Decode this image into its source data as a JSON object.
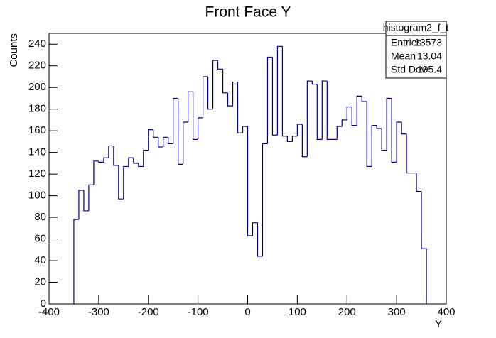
{
  "chart_data": {
    "type": "histogram",
    "title": "Front Face Y",
    "x_label": "Y",
    "y_label": "Counts",
    "bins": [
      -350,
      -340,
      -330,
      -320,
      -310,
      -300,
      -290,
      -280,
      -270,
      -260,
      -250,
      -240,
      -230,
      -220,
      -210,
      -200,
      -190,
      -180,
      -170,
      -160,
      -150,
      -140,
      -130,
      -120,
      -110,
      -100,
      -90,
      -80,
      -70,
      -60,
      -50,
      -40,
      -30,
      -20,
      -10,
      0,
      10,
      20,
      30,
      40,
      50,
      60,
      70,
      80,
      90,
      100,
      110,
      120,
      130,
      140,
      150,
      160,
      170,
      180,
      190,
      200,
      210,
      220,
      230,
      240,
      250,
      260,
      270,
      280,
      290,
      300,
      310,
      320,
      330,
      340,
      350,
      360
    ],
    "values": [
      78,
      105,
      86,
      110,
      132,
      131,
      135,
      146,
      128,
      97,
      127,
      135,
      130,
      127,
      142,
      161,
      154,
      145,
      154,
      148,
      190,
      129,
      168,
      196,
      152,
      172,
      210,
      180,
      225,
      217,
      195,
      183,
      205,
      158,
      164,
      63,
      75,
      44,
      148,
      228,
      156,
      238,
      155,
      150,
      155,
      166,
      136,
      206,
      203,
      152,
      206,
      152,
      152,
      164,
      170,
      182,
      165,
      192,
      187,
      127,
      165,
      162,
      142,
      190,
      131,
      168,
      157,
      121,
      121,
      104,
      51
    ],
    "color": "#000080",
    "xlim": [
      -400,
      400
    ],
    "xticks": [
      -400,
      -300,
      -200,
      -100,
      0,
      100,
      200,
      300,
      400
    ],
    "ylim": [
      0,
      250
    ],
    "yticks": [
      0,
      20,
      40,
      60,
      80,
      100,
      120,
      140,
      160,
      180,
      200,
      220,
      240
    ],
    "stats": {
      "title": "histogram2_f_t",
      "rows": [
        [
          "Entries",
          13573
        ],
        [
          "Mean",
          13.04
        ],
        [
          "Std Dev",
          195.4
        ]
      ]
    }
  }
}
